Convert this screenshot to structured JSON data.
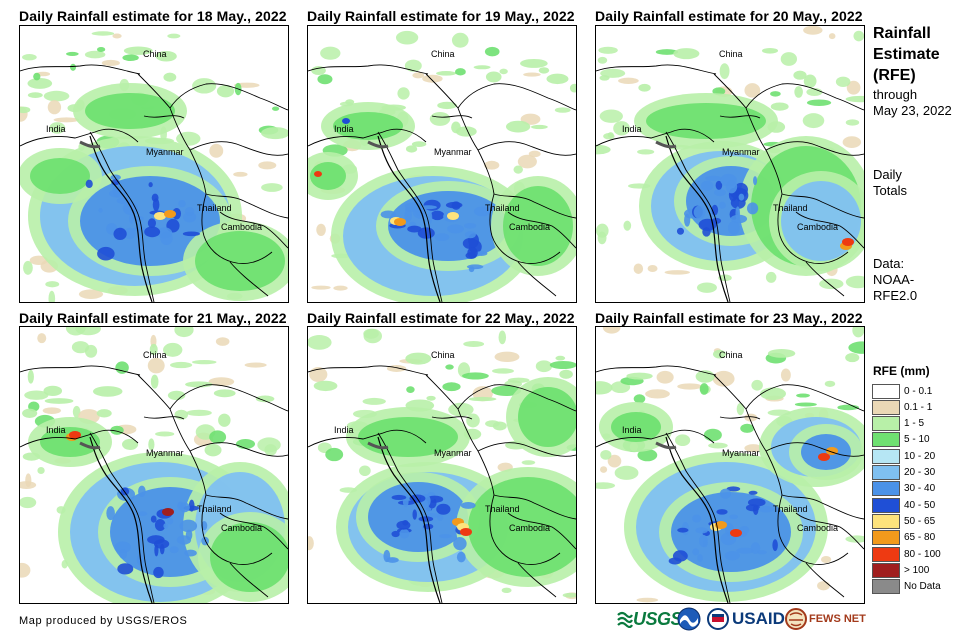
{
  "panels": [
    {
      "title": "Daily Rainfall estimate for 18 May., 2022"
    },
    {
      "title": "Daily Rainfall estimate for 19 May., 2022"
    },
    {
      "title": "Daily Rainfall estimate for 20 May., 2022"
    },
    {
      "title": "Daily Rainfall estimate for 21 May., 2022"
    },
    {
      "title": "Daily Rainfall estimate for 22 May., 2022"
    },
    {
      "title": "Daily Rainfall estimate for 23 May., 2022"
    }
  ],
  "country_labels": {
    "china": "China",
    "india": "India",
    "myanmar": "Myanmar",
    "thailand": "Thailand",
    "cambodia": "Cambodia"
  },
  "sidebar": {
    "title_lines": [
      "Rainfall",
      "Estimate",
      "(RFE)"
    ],
    "through_label": "through",
    "through_date": "May 23, 2022",
    "period_lines": [
      "Daily",
      "Totals"
    ],
    "data_lines": [
      "Data:",
      "NOAA-",
      "RFE2.0"
    ]
  },
  "legend": {
    "title": "RFE (mm)",
    "items": [
      {
        "label": "0 - 0.1",
        "color": "#ffffff"
      },
      {
        "label": "0.1 - 1",
        "color": "#ead8b6"
      },
      {
        "label": "1 - 5",
        "color": "#b8f0a8"
      },
      {
        "label": "5 - 10",
        "color": "#6fe071"
      },
      {
        "label": "10 - 20",
        "color": "#b6e6f4"
      },
      {
        "label": "20 - 30",
        "color": "#7fc0f1"
      },
      {
        "label": "30 - 40",
        "color": "#4b92e8"
      },
      {
        "label": "40 - 50",
        "color": "#1f4fd6"
      },
      {
        "label": "50 - 65",
        "color": "#fde37c"
      },
      {
        "label": "65 - 80",
        "color": "#f29a1c"
      },
      {
        "label": "80 - 100",
        "color": "#ee3a12"
      },
      {
        "label": "> 100",
        "color": "#a01e1e"
      },
      {
        "label": "No Data",
        "color": "#8a8a8a"
      }
    ]
  },
  "footer": {
    "credit": "Map produced by USGS/EROS",
    "logos": {
      "usgs": "USGS",
      "usaid": "USAID",
      "fews": "FEWS NET"
    }
  },
  "colors": {
    "beige": "#ead8b6",
    "light_green": "#b8f0a8",
    "green": "#6fe071",
    "light_blue": "#b6e6f4",
    "sky": "#7fc0f1",
    "blue": "#4b92e8",
    "deep_blue": "#1f4fd6",
    "yellow": "#fde37c",
    "orange": "#f29a1c",
    "red": "#ee3a12",
    "dark_red": "#a01e1e",
    "gray": "#555555"
  }
}
